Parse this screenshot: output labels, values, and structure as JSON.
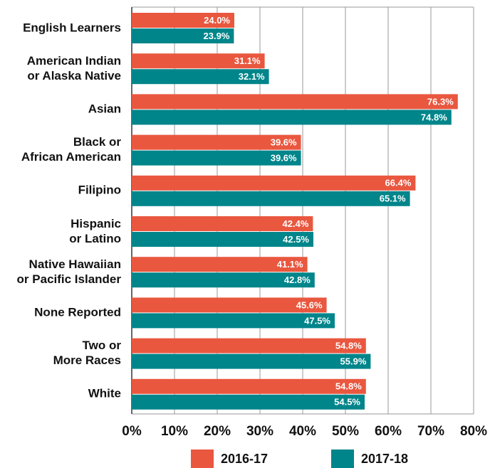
{
  "chart_data": {
    "type": "bar",
    "orientation": "horizontal",
    "categories": [
      "English Learners",
      "American Indian\nor Alaska Native",
      "Asian",
      "Black or\nAfrican American",
      "Filipino",
      "Hispanic\nor Latino",
      "Native Hawaiian\nor Pacific Islander",
      "None Reported",
      "Two or\nMore Races",
      "White"
    ],
    "series": [
      {
        "name": "2016-17",
        "color": "#e9573f",
        "values": [
          24.0,
          31.1,
          76.3,
          39.6,
          66.4,
          42.4,
          41.1,
          45.6,
          54.8,
          54.8
        ],
        "value_labels": [
          "24.0%",
          "31.1%",
          "76.3%",
          "39.6%",
          "66.4%",
          "42.4%",
          "41.1%",
          "45.6%",
          "54.8%",
          "54.8%"
        ]
      },
      {
        "name": "2017-18",
        "color": "#00858a",
        "values": [
          23.9,
          32.1,
          74.8,
          39.6,
          65.1,
          42.5,
          42.8,
          47.5,
          55.9,
          54.5
        ],
        "value_labels": [
          "23.9%",
          "32.1%",
          "74.8%",
          "39.6%",
          "65.1%",
          "42.5%",
          "42.8%",
          "47.5%",
          "55.9%",
          "54.5%"
        ]
      }
    ],
    "xlim": [
      0,
      80
    ],
    "xticks": [
      {
        "value": 0,
        "label": "0%"
      },
      {
        "value": 10,
        "label": "10%"
      },
      {
        "value": 20,
        "label": "20%"
      },
      {
        "value": 30,
        "label": "30%"
      },
      {
        "value": 40,
        "label": "40%"
      },
      {
        "value": 50,
        "label": "50%"
      },
      {
        "value": 60,
        "label": "60%"
      },
      {
        "value": 70,
        "label": "70%"
      },
      {
        "value": 80,
        "label": "80%"
      }
    ],
    "grid": true,
    "legend": "bottom"
  }
}
